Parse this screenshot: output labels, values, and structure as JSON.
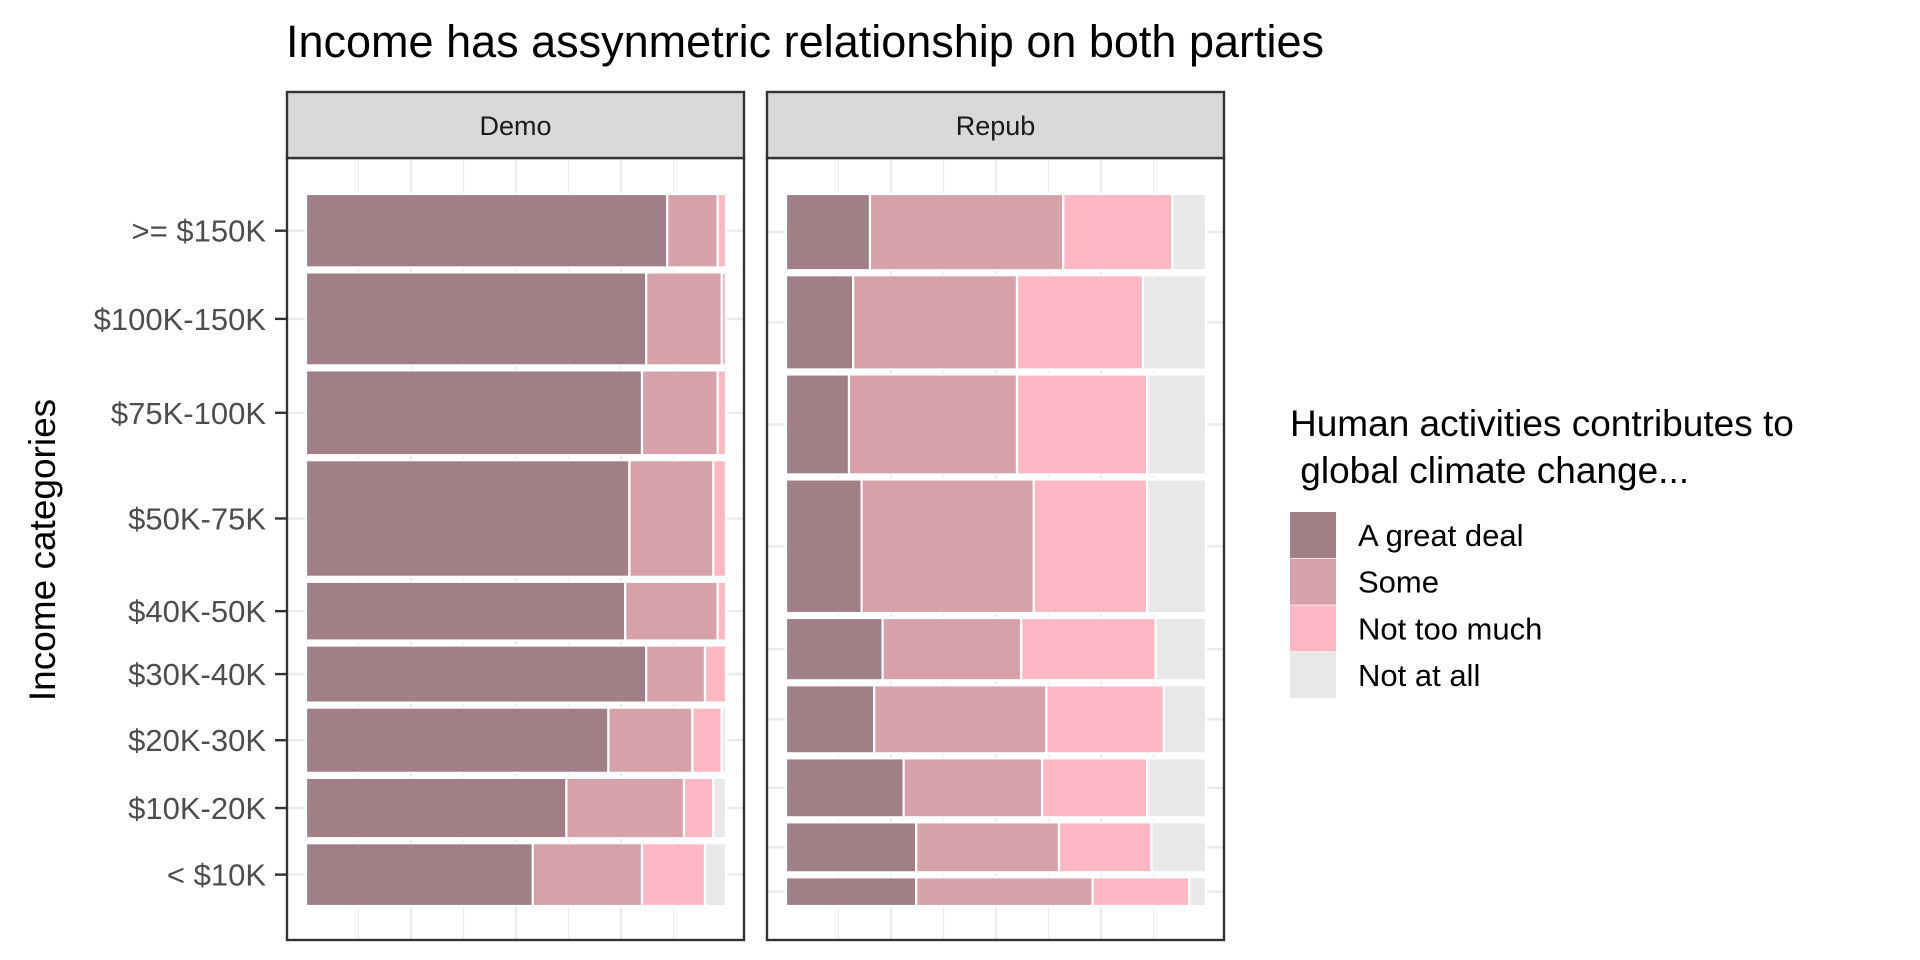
{
  "chart_data": {
    "type": "bar",
    "subtype": "faceted-mosaic-stacked-proportion",
    "title": "Income has assynmetric relationship on both parties",
    "ylabel": "Income categories",
    "xlabel": "",
    "grid": true,
    "legend_placement": "right",
    "facets": [
      "Demo",
      "Repub"
    ],
    "categories": [
      "< $10K",
      "$10K-20K",
      "$20K-30K",
      "$30K-40K",
      "$40K-50K",
      "$50K-75K",
      "$75K-100K",
      "$100K-150K",
      ">= $150K"
    ],
    "legend": {
      "title_line1": "Human activities contributes to",
      "title_line2": " global climate change...",
      "items": [
        "A great deal",
        "Some",
        "Not too much",
        "Not at all"
      ],
      "colors": [
        "#a07f86",
        "#d6a1a9",
        "#ffb8c3",
        "#e8e8e8"
      ]
    },
    "panels": [
      {
        "name": "Demo",
        "row_weights": [
          0.077,
          0.074,
          0.08,
          0.07,
          0.072,
          0.143,
          0.104,
          0.114,
          0.09
        ],
        "series": [
          {
            "name": "A great deal",
            "values": [
              0.54,
              0.62,
              0.72,
              0.81,
              0.76,
              0.77,
              0.8,
              0.81,
              0.86
            ]
          },
          {
            "name": "Some",
            "values": [
              0.26,
              0.28,
              0.2,
              0.14,
              0.22,
              0.2,
              0.18,
              0.18,
              0.12
            ]
          },
          {
            "name": "Not too much",
            "values": [
              0.15,
              0.07,
              0.07,
              0.05,
              0.02,
              0.03,
              0.02,
              0.01,
              0.02
            ]
          },
          {
            "name": "Not at all",
            "values": [
              0.05,
              0.03,
              0.01,
              0.0,
              0.0,
              0.0,
              0.0,
              0.0,
              0.0
            ]
          }
        ]
      },
      {
        "name": "Repub",
        "row_weights": [
          0.035,
          0.061,
          0.072,
          0.083,
          0.076,
          0.163,
          0.122,
          0.115,
          0.093
        ],
        "series": [
          {
            "name": "A great deal",
            "values": [
              0.31,
              0.31,
              0.28,
              0.21,
              0.23,
              0.18,
              0.15,
              0.16,
              0.2
            ]
          },
          {
            "name": "Some",
            "values": [
              0.42,
              0.34,
              0.33,
              0.41,
              0.33,
              0.41,
              0.4,
              0.39,
              0.46
            ]
          },
          {
            "name": "Not too much",
            "values": [
              0.23,
              0.22,
              0.25,
              0.28,
              0.32,
              0.27,
              0.31,
              0.3,
              0.26
            ]
          },
          {
            "name": "Not at all",
            "values": [
              0.04,
              0.13,
              0.14,
              0.1,
              0.12,
              0.14,
              0.14,
              0.15,
              0.08
            ]
          }
        ]
      }
    ]
  }
}
